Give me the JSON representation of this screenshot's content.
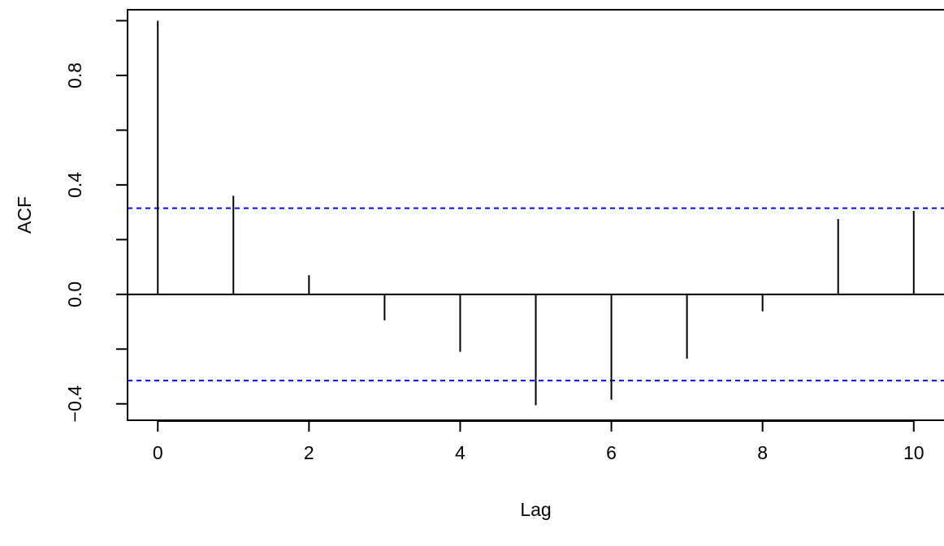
{
  "chart_data": {
    "type": "bar",
    "xlabel": "Lag",
    "ylabel": "ACF",
    "lags": [
      0,
      1,
      2,
      3,
      4,
      5,
      6,
      7,
      8,
      9,
      10
    ],
    "acf": [
      1.0,
      0.36,
      0.07,
      -0.095,
      -0.21,
      -0.405,
      -0.385,
      -0.235,
      -0.062,
      0.275,
      0.305
    ],
    "xlim": [
      -0.4,
      10.4
    ],
    "ylim": [
      -0.46,
      1.04
    ],
    "x_ticks": [
      0,
      2,
      4,
      6,
      8,
      10
    ],
    "x_tick_labels": [
      "0",
      "2",
      "4",
      "6",
      "8",
      "10"
    ],
    "y_ticks": [
      -0.4,
      -0.2,
      0.0,
      0.2,
      0.4,
      0.6,
      0.8,
      1.0
    ],
    "y_tick_labels": [
      "−0.4",
      "",
      "0.0",
      "",
      "0.4",
      "",
      "0.8",
      ""
    ],
    "confidence_bounds": [
      0.315,
      -0.315
    ],
    "ci_color": "#0000ff",
    "zero_line": true,
    "grid": false
  }
}
